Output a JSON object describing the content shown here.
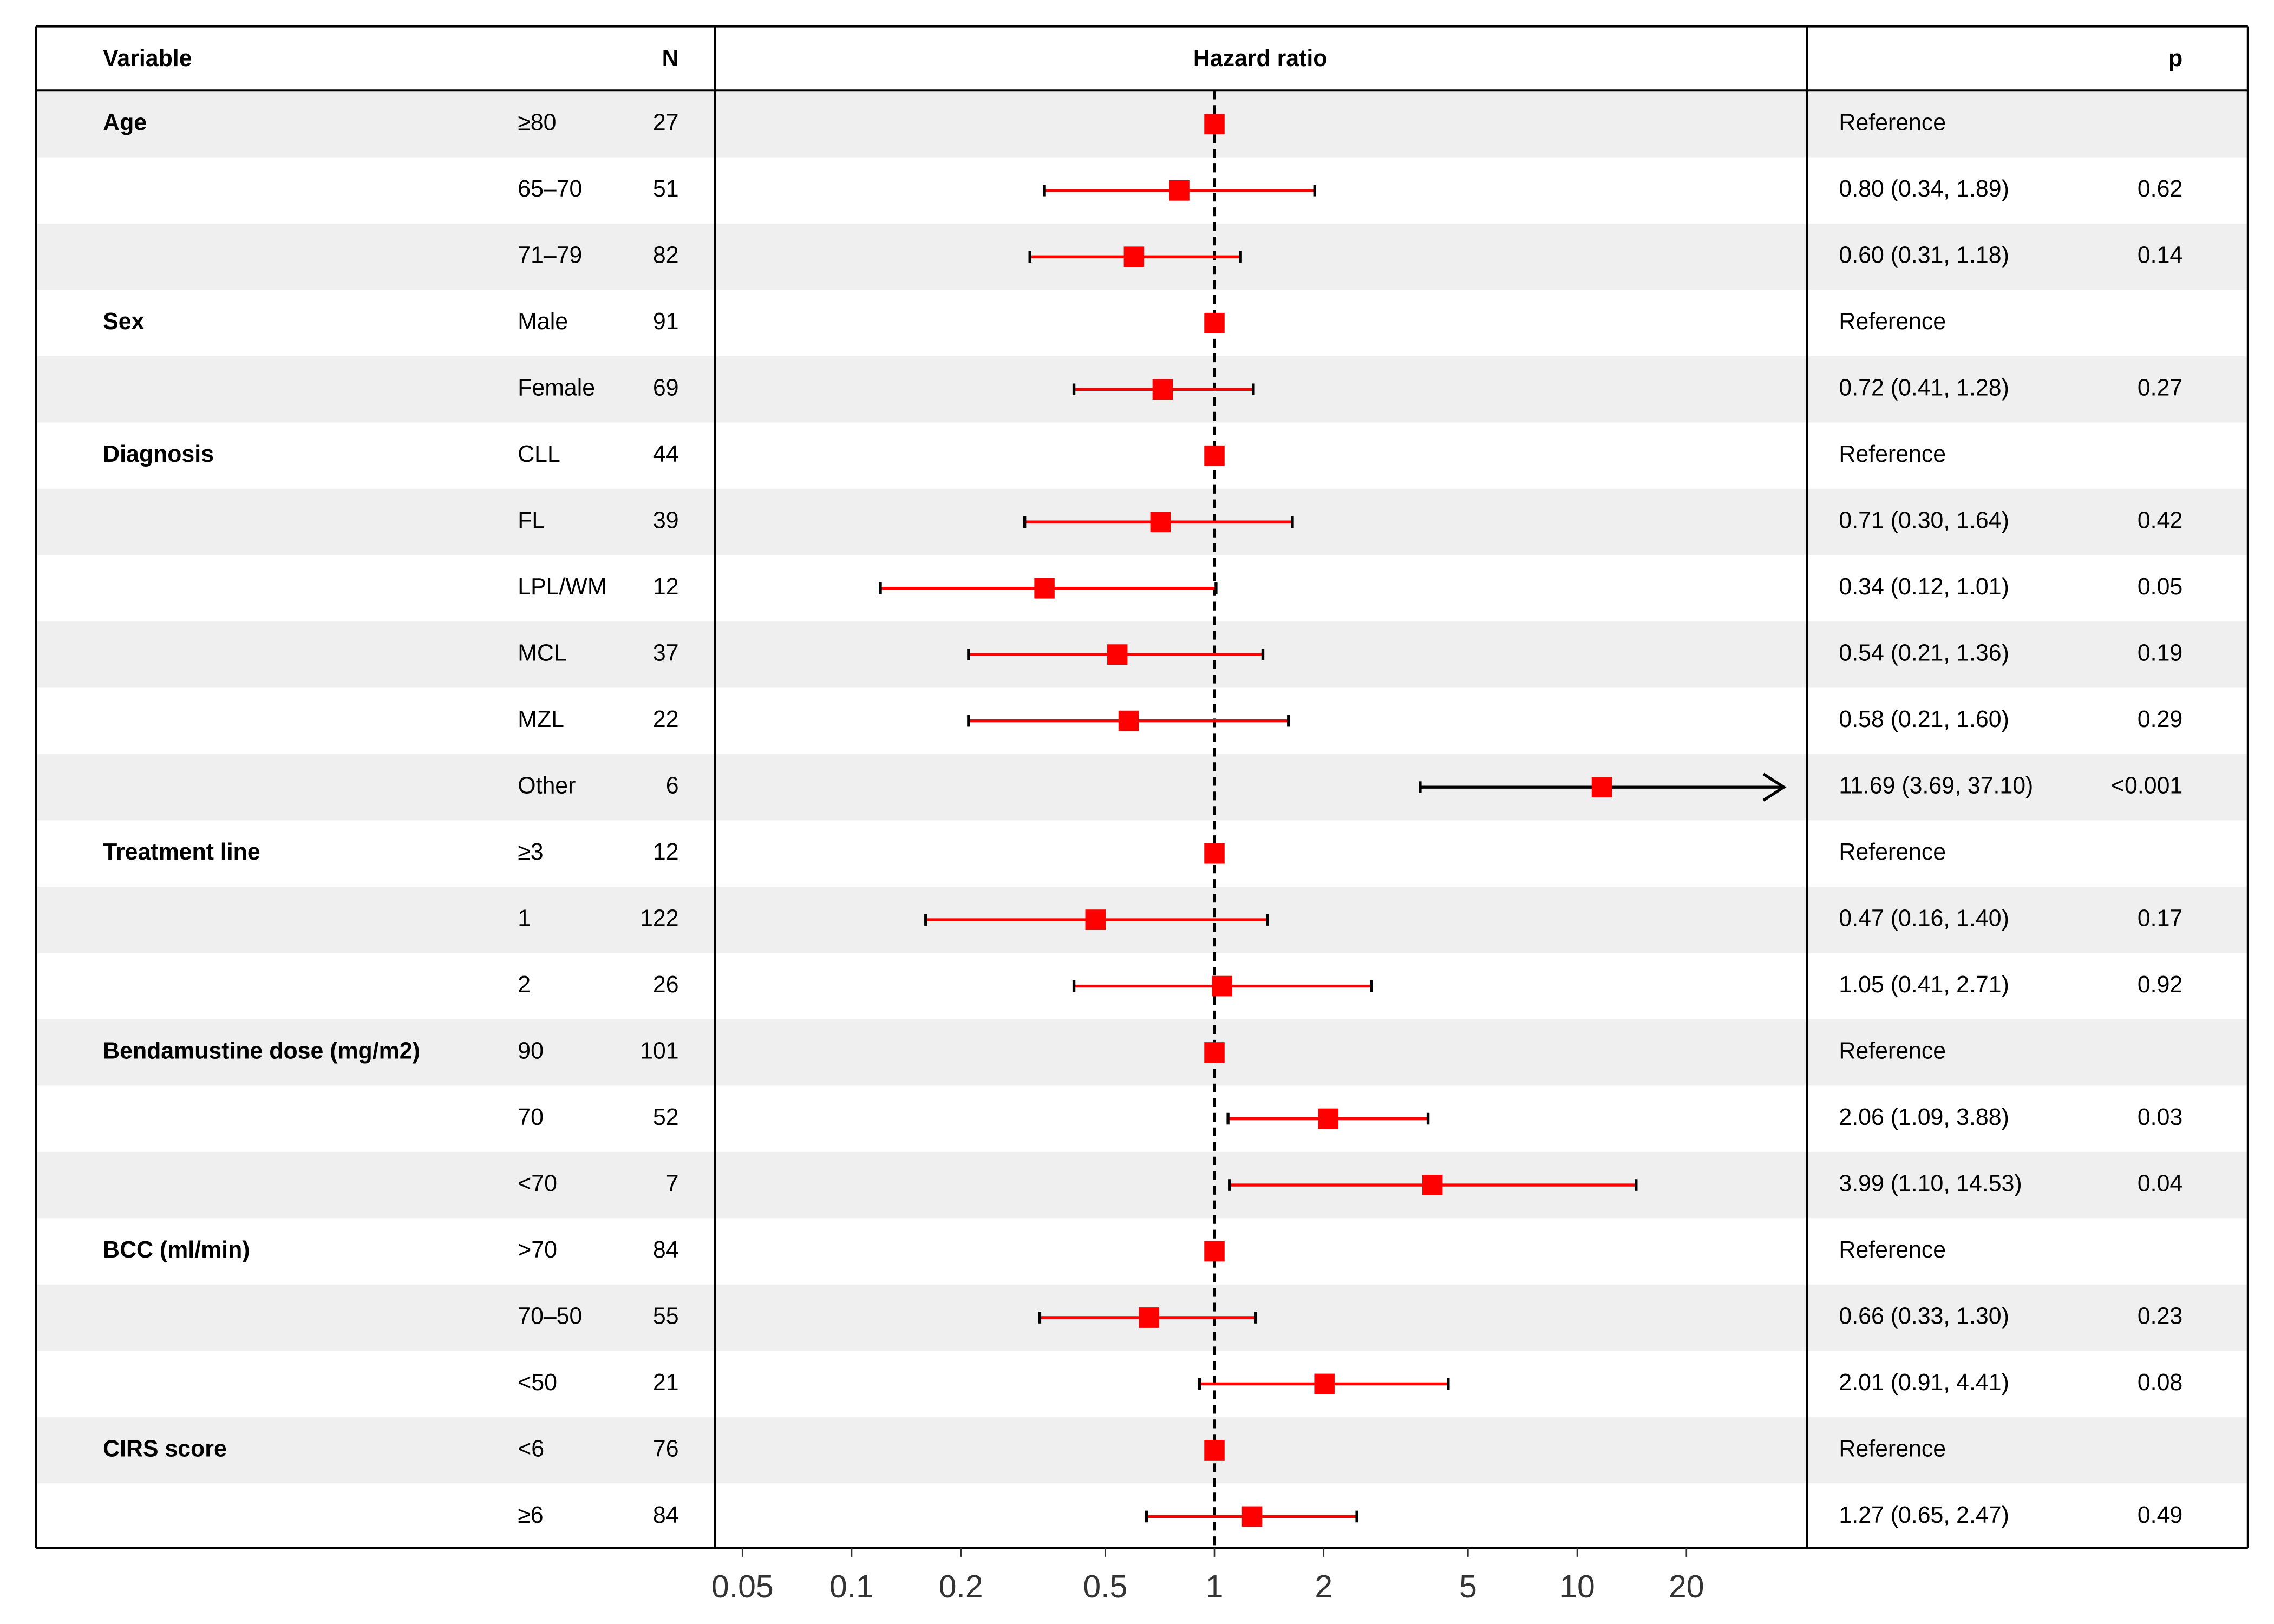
{
  "chart_data": {
    "type": "forest",
    "headers": {
      "variable": "Variable",
      "n": "N",
      "plot": "Hazard ratio",
      "p": "p"
    },
    "log_x": true,
    "xlim": [
      0.042,
      43
    ],
    "xticks": [
      0.05,
      0.1,
      0.2,
      0.5,
      1,
      2,
      5,
      10,
      20
    ],
    "reference_line": 1,
    "marker_color": "#ff0000",
    "ci_color": "#ff0000",
    "stripe_color": "#efefef",
    "rows": [
      {
        "variable": "Age",
        "level": "≥80",
        "n": 27,
        "estimate": 1,
        "label": "Reference"
      },
      {
        "level": "65–70",
        "n": 51,
        "estimate": 0.8,
        "ci_low": 0.34,
        "ci_high": 1.89,
        "label": "0.80 (0.34, 1.89)",
        "p": 0.62
      },
      {
        "level": "71–79",
        "n": 82,
        "estimate": 0.6,
        "ci_low": 0.31,
        "ci_high": 1.18,
        "label": "0.60 (0.31, 1.18)",
        "p": 0.14
      },
      {
        "variable": "Sex",
        "level": "Male",
        "n": 91,
        "estimate": 1,
        "label": "Reference"
      },
      {
        "level": "Female",
        "n": 69,
        "estimate": 0.72,
        "ci_low": 0.41,
        "ci_high": 1.28,
        "label": "0.72 (0.41, 1.28)",
        "p": 0.27
      },
      {
        "variable": "Diagnosis",
        "level": "CLL",
        "n": 44,
        "estimate": 1,
        "label": "Reference"
      },
      {
        "level": "FL",
        "n": 39,
        "estimate": 0.71,
        "ci_low": 0.3,
        "ci_high": 1.64,
        "label": "0.71 (0.30, 1.64)",
        "p": 0.42
      },
      {
        "level": "LPL/WM",
        "n": 12,
        "estimate": 0.34,
        "ci_low": 0.12,
        "ci_high": 1.01,
        "label": "0.34 (0.12, 1.01)",
        "p": 0.05
      },
      {
        "level": "MCL",
        "n": 37,
        "estimate": 0.54,
        "ci_low": 0.21,
        "ci_high": 1.36,
        "label": "0.54 (0.21, 1.36)",
        "p": 0.19
      },
      {
        "level": "MZL",
        "n": 22,
        "estimate": 0.58,
        "ci_low": 0.21,
        "ci_high": 1.6,
        "label": "0.58 (0.21, 1.60)",
        "p": 0.29
      },
      {
        "level": "Other",
        "n": 6,
        "estimate": 11.69,
        "ci_low": 3.69,
        "ci_high": 37.1,
        "label": "11.69 (3.69, 37.10)",
        "p": "<0.001",
        "ci_color": "#000000",
        "arrow": true
      },
      {
        "variable": "Treatment line",
        "level": "≥3",
        "n": 12,
        "estimate": 1,
        "label": "Reference"
      },
      {
        "level": "1",
        "n": 122,
        "estimate": 0.47,
        "ci_low": 0.16,
        "ci_high": 1.4,
        "label": "0.47 (0.16, 1.40)",
        "p": 0.17
      },
      {
        "level": "2",
        "n": 26,
        "estimate": 1.05,
        "ci_low": 0.41,
        "ci_high": 2.71,
        "label": "1.05 (0.41, 2.71)",
        "p": 0.92
      },
      {
        "variable": "Bendamustine dose (mg/m2)",
        "level": "90",
        "n": 101,
        "estimate": 1,
        "label": "Reference"
      },
      {
        "level": "70",
        "n": 52,
        "estimate": 2.06,
        "ci_low": 1.09,
        "ci_high": 3.88,
        "label": "2.06 (1.09, 3.88)",
        "p": 0.03
      },
      {
        "level": "<70",
        "n": 7,
        "estimate": 3.99,
        "ci_low": 1.1,
        "ci_high": 14.53,
        "label": "3.99 (1.10, 14.53)",
        "p": 0.04
      },
      {
        "variable": "BCC (ml/min)",
        "level": ">70",
        "n": 84,
        "estimate": 1,
        "label": "Reference"
      },
      {
        "level": "70–50",
        "n": 55,
        "estimate": 0.66,
        "ci_low": 0.33,
        "ci_high": 1.3,
        "label": "0.66 (0.33, 1.30)",
        "p": 0.23
      },
      {
        "level": "<50",
        "n": 21,
        "estimate": 2.01,
        "ci_low": 0.91,
        "ci_high": 4.41,
        "label": "2.01 (0.91, 4.41)",
        "p": 0.08
      },
      {
        "variable": "CIRS score",
        "level": "<6",
        "n": 76,
        "estimate": 1,
        "label": "Reference"
      },
      {
        "level": "≥6",
        "n": 84,
        "estimate": 1.27,
        "ci_low": 0.65,
        "ci_high": 2.47,
        "label": "1.27 (0.65, 2.47)",
        "p": 0.49
      }
    ]
  }
}
